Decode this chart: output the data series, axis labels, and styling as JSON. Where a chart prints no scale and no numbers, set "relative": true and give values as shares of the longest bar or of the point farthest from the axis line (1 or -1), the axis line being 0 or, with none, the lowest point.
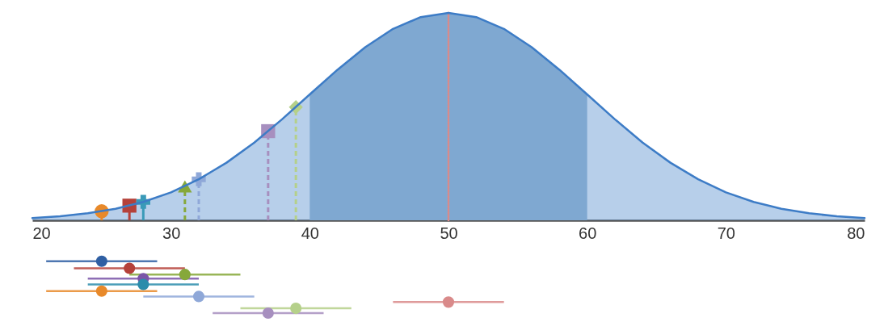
{
  "chart_data": {
    "type": "area",
    "relative": true,
    "xlim": [
      20,
      80
    ],
    "xticks": [
      20,
      30,
      40,
      50,
      60,
      70,
      80
    ],
    "grid": false,
    "series": [
      {
        "color": "#3d7cc6",
        "line_style": "solid",
        "x": [
          20,
          22,
          24,
          26,
          28,
          30,
          32,
          34,
          36,
          38,
          40,
          42,
          44,
          46,
          48,
          50,
          52,
          54,
          56,
          58,
          60,
          62,
          64,
          66,
          68,
          70,
          72,
          74,
          76,
          78,
          80
        ],
        "values": [
          0.011,
          0.02,
          0.034,
          0.056,
          0.089,
          0.135,
          0.198,
          0.278,
          0.375,
          0.487,
          0.607,
          0.726,
          0.835,
          0.923,
          0.98,
          1,
          0.98,
          0.923,
          0.835,
          0.726,
          0.607,
          0.487,
          0.375,
          0.278,
          0.198,
          0.135,
          0.089,
          0.056,
          0.034,
          0.02,
          0.011
        ]
      },
      {
        "color": "#7fa8d1",
        "x": [
          40,
          42,
          44,
          46,
          48,
          50,
          52,
          54,
          56,
          58,
          60
        ],
        "values": [
          0.607,
          0.726,
          0.835,
          0.923,
          0.98,
          1,
          0.98,
          0.923,
          0.835,
          0.726,
          0.607
        ]
      },
      {
        "type": "lollipop",
        "color": "#e8892a",
        "x": [
          25
        ],
        "values": [
          0.044
        ],
        "marker": "circle",
        "line_style": "solid"
      },
      {
        "type": "lollipop",
        "color": "#b5413a",
        "x": [
          27
        ],
        "values": [
          0.071
        ],
        "marker": "square",
        "line_style": "solid"
      },
      {
        "type": "lollipop",
        "color": "#3a9ab8",
        "x": [
          28
        ],
        "values": [
          0.089
        ],
        "marker": "cross",
        "line_style": "solid"
      },
      {
        "type": "lollipop",
        "color": "#86a83a",
        "x": [
          31
        ],
        "values": [
          0.164
        ],
        "marker": "triangle",
        "line_style": "dashed"
      },
      {
        "type": "lollipop",
        "color": "#8fa8d8",
        "x": [
          32
        ],
        "values": [
          0.198
        ],
        "marker": "cross",
        "line_style": "dashed"
      },
      {
        "type": "lollipop",
        "color": "#a78fbf",
        "x": [
          37
        ],
        "values": [
          0.43
        ],
        "marker": "square",
        "line_style": "dashed"
      },
      {
        "type": "lollipop",
        "color": "#b5d08a",
        "x": [
          39
        ],
        "values": [
          0.546
        ],
        "marker": "diamond",
        "line_style": "dashed"
      },
      {
        "type": "line",
        "color": "#d98a8a",
        "x": [
          50,
          50
        ],
        "values": [
          0,
          1
        ],
        "line_style": "dotted"
      },
      {
        "type": "scatter",
        "marker": "circle",
        "x": [
          25,
          27,
          31,
          28,
          28,
          25,
          32,
          50,
          39,
          37
        ],
        "values": [
          -0.197,
          -0.231,
          -0.261,
          -0.281,
          -0.309,
          -0.341,
          -0.367,
          -0.394,
          -0.424,
          -0.447
        ],
        "xerrors": [
          4,
          4,
          4,
          4,
          4,
          4,
          4,
          4,
          4,
          4
        ],
        "colors": [
          "#2f5fa3",
          "#b5413a",
          "#86a83a",
          "#7a55a8",
          "#2b8cab",
          "#e8892a",
          "#8fa8d8",
          "#d98a8a",
          "#b5d08a",
          "#a78fbf"
        ]
      }
    ]
  }
}
